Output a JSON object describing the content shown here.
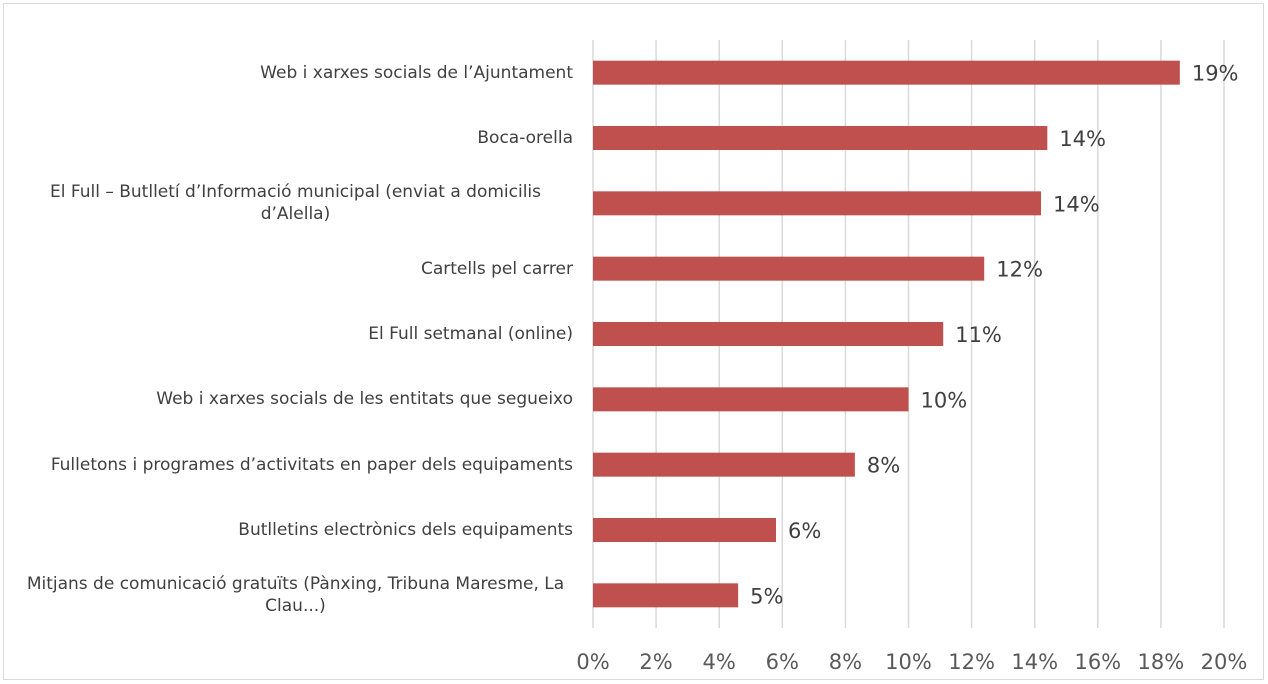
{
  "chart_data": {
    "type": "barh",
    "categories": [
      "Web i xarxes socials de l’Ajuntament",
      "Boca-orella",
      "El Full – Butlletí d’Informació municipal (enviat a domicilis d’Alella)",
      "Cartells pel carrer",
      "El Full setmanal (online)",
      "Web i xarxes socials de les entitats que segueixo",
      "Fulletons i programes d’activitats en paper dels equipaments",
      "Butlletins electrònics dels equipaments",
      "Mitjans de comunicació gratuïts (Pànxing, Tribuna Maresme, La Clau...)"
    ],
    "values": [
      18.6,
      14.4,
      14.2,
      12.4,
      11.1,
      10.0,
      8.3,
      5.8,
      4.6
    ],
    "value_labels": [
      "19%",
      "14%",
      "14%",
      "12%",
      "11%",
      "10%",
      "8%",
      "6%",
      "5%"
    ],
    "color": "#c0504d",
    "xlim": [
      0,
      20
    ],
    "xticks": [
      {
        "value": 0,
        "label": "0%"
      },
      {
        "value": 2,
        "label": "2%"
      },
      {
        "value": 4,
        "label": "4%"
      },
      {
        "value": 6,
        "label": "6%"
      },
      {
        "value": 8,
        "label": "8%"
      },
      {
        "value": 10,
        "label": "10%"
      },
      {
        "value": 12,
        "label": "12%"
      },
      {
        "value": 14,
        "label": "14%"
      },
      {
        "value": 16,
        "label": "16%"
      },
      {
        "value": 18,
        "label": "18%"
      },
      {
        "value": 20,
        "label": "20%"
      }
    ],
    "grid": true
  }
}
